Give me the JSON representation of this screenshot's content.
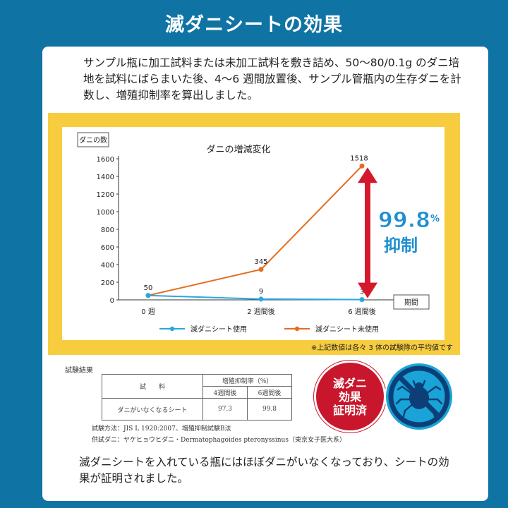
{
  "title": "滅ダニシートの効果",
  "intro": "サンプル瓶に加工試料または未加工試料を敷き詰め、50〜80/0.1g のダニ培地を試料にばらまいた後、4〜6 週間放置後、サンプル管瓶内の生存ダニを計数し、増殖抑制率を算出しました。",
  "chart_data": {
    "type": "line",
    "title": "ダニの増減変化",
    "ylabel": "ダニの数",
    "xlabel": "期間",
    "categories": [
      "0 週",
      "2 週間後",
      "6 週間後"
    ],
    "ylim": [
      0,
      1600
    ],
    "yticks": [
      "0",
      "200",
      "400",
      "600",
      "800",
      "1000",
      "1200",
      "1400",
      "1600"
    ],
    "series": [
      {
        "name": "滅ダニシート使用",
        "color": "#2aa7de",
        "values": [
          50,
          9,
          3
        ],
        "labels": [
          "50",
          "9",
          "3"
        ]
      },
      {
        "name": "滅ダニシート未使用",
        "color": "#e46d1f",
        "values": [
          50,
          345,
          1518
        ],
        "labels": [
          "",
          "345",
          "1518"
        ]
      }
    ],
    "annotation": {
      "value": "99.8",
      "unit": "%",
      "text": "抑制",
      "color": "#d4192c",
      "text_color": "#1c8fd0"
    },
    "grid": false,
    "legend": "bottom"
  },
  "footnote": "※上記数値は各々 3 体の試験隊の平均値です",
  "results": {
    "title": "試験結果",
    "header_sample": "試　　料",
    "header_rate": "増殖抑制率（%）",
    "col_4w": "4週間後",
    "col_6w": "6週間後",
    "row_name": "ダニがいなくなるシート",
    "row_4w": "97.3",
    "row_6w": "99.8",
    "method": "試験方法：JIS L 1920:2007、増殖抑制試験B法",
    "mite": "供試ダニ：ヤケヒョウヒダニ・Dermatophagoides pteronyssinus（東京女子医大系）"
  },
  "badge": {
    "line1": "滅ダニ",
    "line2": "効果",
    "line3": "証明済",
    "color": "#c8172c"
  },
  "mite_icon": "mite-prohibited-icon",
  "conclusion": "滅ダニシートを入れている瓶にはほぼダニがいなくなっており、シートの効果が証明されました。"
}
